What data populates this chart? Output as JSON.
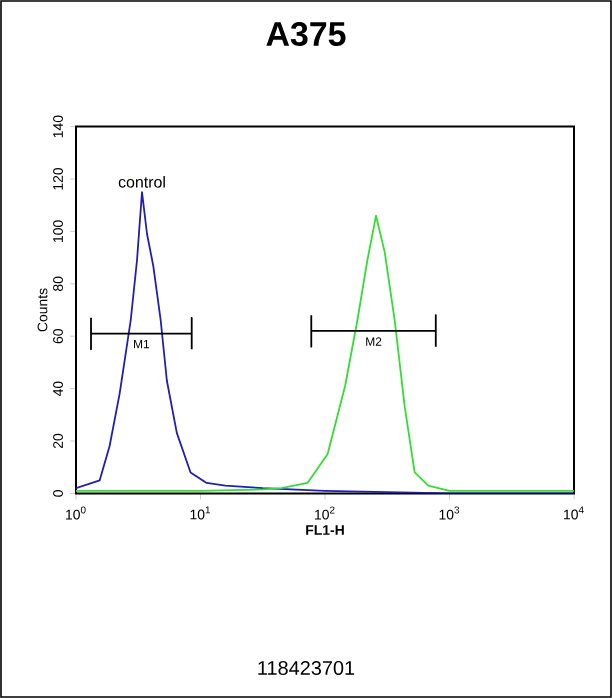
{
  "chart_data": {
    "type": "line",
    "title": "A375",
    "xlabel": "FL1-H",
    "ylabel": "Counts",
    "log": "x",
    "grid": false,
    "marker": "none",
    "line_style": "solid",
    "xlim": [
      1,
      10000
    ],
    "ylim": [
      0,
      140
    ],
    "xticks": [
      {
        "value": 1,
        "label": "10$^{0}$"
      },
      {
        "value": 10,
        "label": "10$^{1}$"
      },
      {
        "value": 100,
        "label": "10$^{2}$"
      },
      {
        "value": 1000,
        "label": "10$^{3}$"
      },
      {
        "value": 10000,
        "label": "10$^{4}$"
      }
    ],
    "yticks": [
      0,
      20,
      40,
      60,
      80,
      100,
      120,
      140
    ],
    "series": [
      {
        "name": "control",
        "color": "#1f1fb0",
        "x": [
          1,
          1.55,
          1.86,
          2.24,
          2.75,
          3.09,
          3.39,
          3.72,
          4.17,
          4.79,
          5.37,
          6.46,
          8.32,
          11.2,
          15.8,
          31.6,
          100,
          316,
          1000,
          10000
        ],
        "values": [
          2,
          5,
          18,
          38,
          66,
          89,
          115,
          99,
          87,
          66,
          43,
          23,
          8,
          4,
          3,
          2,
          1,
          0.5,
          0,
          0
        ]
      },
      {
        "color": "#33dd33",
        "x": [
          1,
          10,
          31.6,
          44.7,
          72.4,
          105,
          145,
          182,
          219,
          257,
          302,
          363,
          437,
          525,
          676,
          1000,
          10000
        ],
        "values": [
          1,
          1,
          1.5,
          2,
          4,
          15,
          41,
          66,
          89,
          106,
          92,
          66,
          33,
          8,
          3,
          1,
          1
        ]
      },
      {
        "name": "M1",
        "color": "#000000",
        "x": [
          1.32,
          1.32,
          1.32,
          8.5,
          8.5,
          8.5
        ],
        "values": [
          67,
          55,
          61,
          61,
          67,
          55
        ]
      },
      {
        "name": "M2",
        "color": "#000000",
        "x": [
          77.6,
          77.6,
          77.6,
          776,
          776,
          776
        ],
        "values": [
          68,
          56,
          62,
          62,
          68,
          56
        ]
      }
    ],
    "annotations": [
      "118423701"
    ]
  }
}
